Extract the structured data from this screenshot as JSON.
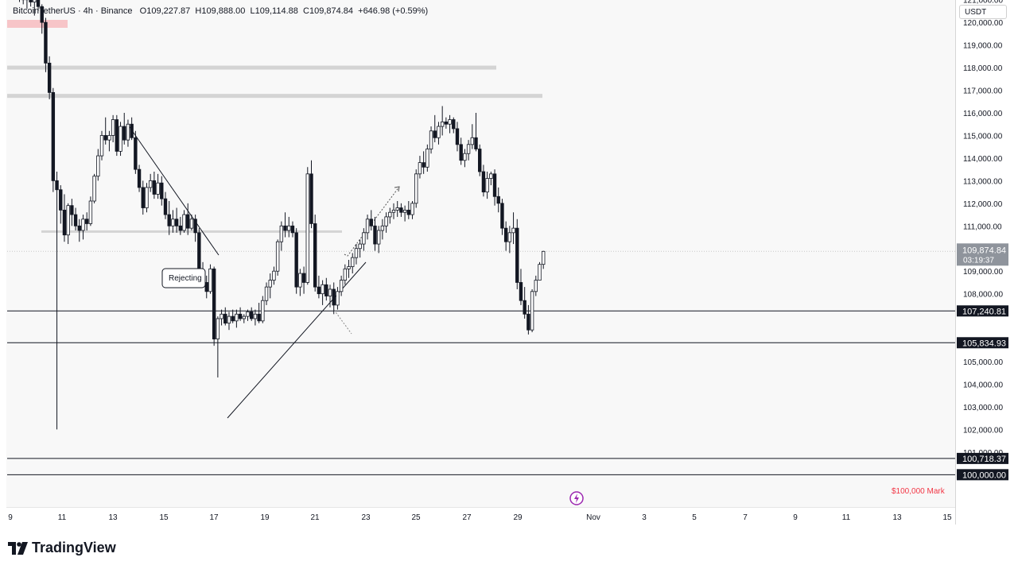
{
  "symbol_bar": {
    "symbol": "BitcoinTetherUS",
    "interval": "4h",
    "exchange": "Binance",
    "open": "O109,227.87",
    "high": "H109,888.00",
    "low": "L109,114.88",
    "close": "C109,874.84",
    "change": "+646.98 (+0.59%)"
  },
  "price_scale": {
    "currency": "USDT",
    "ticks": [
      "121,000.00",
      "120,000.00",
      "119,000.00",
      "118,000.00",
      "117,000.00",
      "116,000.00",
      "115,000.00",
      "114,000.00",
      "113,000.00",
      "112,000.00",
      "111,000.00",
      "109,000.00",
      "108,000.00",
      "105,000.00",
      "104,000.00",
      "103,000.00",
      "102,000.00",
      "101,000.00"
    ],
    "last_price_label": "109,874.84",
    "countdown": "03:19:37",
    "level_labels": [
      "107,240.81",
      "105,834.93",
      "100,718.37",
      "100,000.00"
    ]
  },
  "time_axis": {
    "labels": [
      "9",
      "11",
      "13",
      "15",
      "17",
      "19",
      "21",
      "23",
      "25",
      "27",
      "29",
      "Nov",
      "3",
      "5",
      "7",
      "9",
      "11",
      "13",
      "15"
    ]
  },
  "annotations": {
    "rejecting": "Rejecting",
    "mark_100k": "$100,000 Mark"
  },
  "branding": {
    "logo_text": "TradingView"
  },
  "colors": {
    "up": "#ffffff",
    "down": "#131722",
    "candle_border": "#131722",
    "level_line": "#131722",
    "zone": "#d4d4d4",
    "mark_text": "#f23645",
    "event_icon": "#9c27b0"
  },
  "chart_data": {
    "type": "candlestick",
    "symbol": "BTCUSDT",
    "timeframe": "4h",
    "x_axis": "Oct 9 – Nov 15",
    "ylim": [
      99800,
      121300
    ],
    "horizontal_levels": [
      107240.81,
      105834.93,
      100718.37,
      100000.0
    ],
    "resistance_zones": [
      118000,
      116750,
      110750
    ],
    "series": [
      {
        "name": "candles",
        "ohlc": [
          [
            121400,
            121500,
            120900,
            121200
          ],
          [
            121200,
            121300,
            120800,
            121000
          ],
          [
            121000,
            121300,
            120600,
            121100
          ],
          [
            121100,
            121200,
            120700,
            120900
          ],
          [
            120900,
            121100,
            120300,
            121000
          ],
          [
            121000,
            121100,
            120500,
            120700
          ],
          [
            120700,
            120800,
            119500,
            120000
          ],
          [
            120000,
            120200,
            117800,
            118200
          ],
          [
            118200,
            118500,
            116600,
            116900
          ],
          [
            116900,
            117100,
            112500,
            113000
          ],
          [
            113000,
            113400,
            102000,
            112600
          ],
          [
            112600,
            112800,
            111100,
            111700
          ],
          [
            111700,
            112400,
            110300,
            110600
          ],
          [
            110600,
            112000,
            110200,
            111900
          ],
          [
            111900,
            112200,
            111000,
            111500
          ],
          [
            111500,
            111800,
            110800,
            111000
          ],
          [
            111000,
            111300,
            110300,
            110800
          ],
          [
            110800,
            111500,
            110400,
            111300
          ],
          [
            111300,
            111600,
            110800,
            111100
          ],
          [
            111100,
            112300,
            111000,
            112100
          ],
          [
            112100,
            113300,
            112000,
            113200
          ],
          [
            113200,
            114400,
            113000,
            114100
          ],
          [
            114100,
            115200,
            113900,
            115000
          ],
          [
            115000,
            115800,
            114600,
            114800
          ],
          [
            114800,
            115200,
            114300,
            115000
          ],
          [
            115000,
            115900,
            114700,
            115700
          ],
          [
            115700,
            115900,
            114100,
            114300
          ],
          [
            114300,
            115600,
            114100,
            115400
          ],
          [
            115400,
            116000,
            114600,
            114800
          ],
          [
            114800,
            115700,
            114500,
            115500
          ],
          [
            115500,
            115800,
            114800,
            114900
          ],
          [
            114900,
            115200,
            113300,
            113500
          ],
          [
            113500,
            113700,
            112500,
            112700
          ],
          [
            112700,
            113000,
            111500,
            111800
          ],
          [
            111800,
            112900,
            111600,
            112700
          ],
          [
            112700,
            113300,
            112500,
            113000
          ],
          [
            113000,
            113400,
            112200,
            112400
          ],
          [
            112400,
            113300,
            112200,
            112900
          ],
          [
            112900,
            113200,
            111900,
            112200
          ],
          [
            112200,
            112500,
            111300,
            111500
          ],
          [
            111500,
            112100,
            110600,
            111000
          ],
          [
            111000,
            111700,
            110700,
            111300
          ],
          [
            111300,
            111800,
            110700,
            111000
          ],
          [
            111000,
            111400,
            110600,
            110800
          ],
          [
            110800,
            111700,
            110700,
            111500
          ],
          [
            111500,
            112000,
            110600,
            110900
          ],
          [
            110900,
            111500,
            110800,
            111300
          ],
          [
            111300,
            111500,
            110300,
            110700
          ],
          [
            110700,
            110900,
            108400,
            108800
          ],
          [
            108800,
            109400,
            108300,
            108500
          ],
          [
            108500,
            108800,
            107800,
            108100
          ],
          [
            108100,
            109300,
            108000,
            109100
          ],
          [
            109100,
            109200,
            105700,
            106000
          ],
          [
            106000,
            107000,
            104300,
            106900
          ],
          [
            106900,
            107300,
            106600,
            107100
          ],
          [
            107100,
            107400,
            106600,
            106700
          ],
          [
            106700,
            107200,
            106400,
            107000
          ],
          [
            107000,
            107300,
            106700,
            106800
          ],
          [
            106800,
            107300,
            106500,
            107100
          ],
          [
            107100,
            107400,
            106800,
            106900
          ],
          [
            106900,
            107100,
            106700,
            107000
          ],
          [
            107000,
            107300,
            106800,
            107200
          ],
          [
            107200,
            107400,
            106800,
            106900
          ],
          [
            106900,
            107300,
            106600,
            107100
          ],
          [
            107100,
            107600,
            106700,
            106800
          ],
          [
            106800,
            107900,
            106700,
            107700
          ],
          [
            107700,
            108500,
            107500,
            108300
          ],
          [
            108300,
            108900,
            107800,
            108600
          ],
          [
            108600,
            109200,
            108400,
            109000
          ],
          [
            109000,
            110400,
            108800,
            110300
          ],
          [
            110300,
            111200,
            109900,
            111000
          ],
          [
            111000,
            111600,
            110500,
            110800
          ],
          [
            110800,
            111400,
            110500,
            111000
          ],
          [
            111000,
            111200,
            110500,
            110700
          ],
          [
            110700,
            110900,
            108000,
            108300
          ],
          [
            108300,
            109100,
            107900,
            108900
          ],
          [
            108900,
            109200,
            108000,
            108500
          ],
          [
            108500,
            113600,
            108400,
            113300
          ],
          [
            113300,
            113900,
            110900,
            111100
          ],
          [
            111100,
            111500,
            108100,
            108300
          ],
          [
            108300,
            108800,
            107800,
            108000
          ],
          [
            108000,
            108600,
            107500,
            108400
          ],
          [
            108400,
            108700,
            107700,
            107900
          ],
          [
            107900,
            108400,
            107400,
            108200
          ],
          [
            108200,
            108500,
            107100,
            107500
          ],
          [
            107500,
            108300,
            107300,
            108100
          ],
          [
            108100,
            108800,
            107900,
            108600
          ],
          [
            108600,
            109300,
            108400,
            109100
          ],
          [
            109100,
            109500,
            108700,
            109200
          ],
          [
            109200,
            109800,
            108900,
            109600
          ],
          [
            109600,
            110200,
            109300,
            110000
          ],
          [
            110000,
            110400,
            109600,
            110200
          ],
          [
            110200,
            110900,
            109900,
            110700
          ],
          [
            110700,
            111500,
            110400,
            111300
          ],
          [
            111300,
            111700,
            110800,
            111000
          ],
          [
            111000,
            111400,
            109900,
            110200
          ],
          [
            110200,
            111000,
            109800,
            110800
          ],
          [
            110800,
            111300,
            110400,
            111000
          ],
          [
            111000,
            111600,
            110700,
            111400
          ],
          [
            111400,
            111800,
            111100,
            111600
          ],
          [
            111600,
            112000,
            111300,
            111700
          ],
          [
            111700,
            112100,
            111400,
            111800
          ],
          [
            111800,
            112000,
            111400,
            111600
          ],
          [
            111600,
            111900,
            111200,
            111700
          ],
          [
            111700,
            112100,
            111300,
            111500
          ],
          [
            111500,
            112100,
            111300,
            112000
          ],
          [
            112000,
            113500,
            111800,
            113300
          ],
          [
            113300,
            114100,
            113100,
            113800
          ],
          [
            113800,
            114300,
            113300,
            113600
          ],
          [
            113600,
            114600,
            113400,
            114400
          ],
          [
            114400,
            115400,
            114200,
            115200
          ],
          [
            115200,
            115900,
            114700,
            114900
          ],
          [
            114900,
            115600,
            114600,
            115400
          ],
          [
            115400,
            116300,
            115000,
            115600
          ],
          [
            115600,
            115800,
            115300,
            115500
          ],
          [
            115500,
            115900,
            115100,
            115700
          ],
          [
            115700,
            115800,
            115100,
            115300
          ],
          [
            115300,
            115600,
            114300,
            114600
          ],
          [
            114600,
            114900,
            113700,
            113900
          ],
          [
            113900,
            114400,
            113600,
            114200
          ],
          [
            114200,
            114800,
            113900,
            114600
          ],
          [
            114600,
            115500,
            114400,
            114900
          ],
          [
            114900,
            116000,
            114300,
            114400
          ],
          [
            114400,
            114600,
            113200,
            113400
          ],
          [
            113400,
            113700,
            112300,
            112500
          ],
          [
            112500,
            113400,
            112200,
            113100
          ],
          [
            113100,
            113400,
            112800,
            113300
          ],
          [
            113300,
            113500,
            111900,
            112300
          ],
          [
            112300,
            112700,
            111600,
            112000
          ],
          [
            112000,
            112200,
            110600,
            110900
          ],
          [
            110900,
            111200,
            109900,
            110300
          ],
          [
            110300,
            111000,
            109800,
            110700
          ],
          [
            110700,
            111600,
            110200,
            110900
          ],
          [
            110900,
            111300,
            108200,
            108500
          ],
          [
            108500,
            109100,
            107500,
            107700
          ],
          [
            107700,
            108300,
            106900,
            107100
          ],
          [
            107100,
            107500,
            106200,
            106400
          ],
          [
            106400,
            108200,
            106300,
            108100
          ],
          [
            108100,
            108800,
            107900,
            108600
          ],
          [
            108600,
            109400,
            108600,
            109300
          ],
          [
            109300,
            109900,
            109100,
            109875
          ]
        ]
      }
    ]
  }
}
